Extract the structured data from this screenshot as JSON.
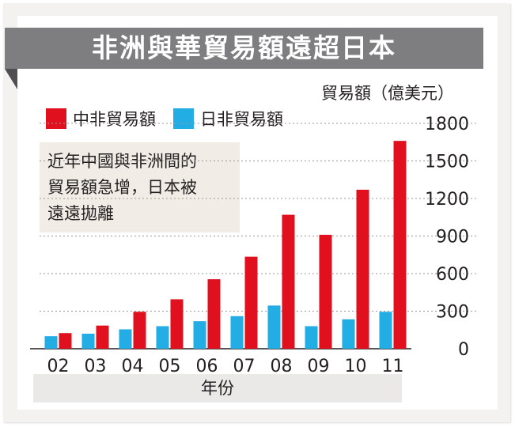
{
  "header": {
    "title": "非洲與華貿易額遠超日本"
  },
  "note": {
    "lines": [
      "近年中國與非洲間的",
      "貿易額急增，日本被",
      "遠遠拋離"
    ]
  },
  "colors": {
    "china": "#e0101e",
    "japan": "#22aee4",
    "banner": "#7e7e80"
  },
  "chart_data": {
    "type": "bar",
    "title": "非洲與華貿易額遠超日本",
    "ylabel": "貿易額（億美元）",
    "xlabel": "年份",
    "categories": [
      "02",
      "03",
      "04",
      "05",
      "06",
      "07",
      "08",
      "09",
      "10",
      "11"
    ],
    "series": [
      {
        "name": "中非貿易額",
        "color": "#e0101e",
        "values": [
          125,
          185,
          295,
          395,
          555,
          735,
          1070,
          910,
          1270,
          1660
        ]
      },
      {
        "name": "日非貿易額",
        "color": "#22aee4",
        "values": [
          100,
          120,
          155,
          180,
          220,
          260,
          345,
          180,
          235,
          295
        ]
      }
    ],
    "yticks": [
      "0",
      "300",
      "600",
      "900",
      "1200",
      "1500",
      "1800"
    ],
    "ylim": [
      0,
      1800
    ],
    "grid": true,
    "legend": "top-left"
  }
}
